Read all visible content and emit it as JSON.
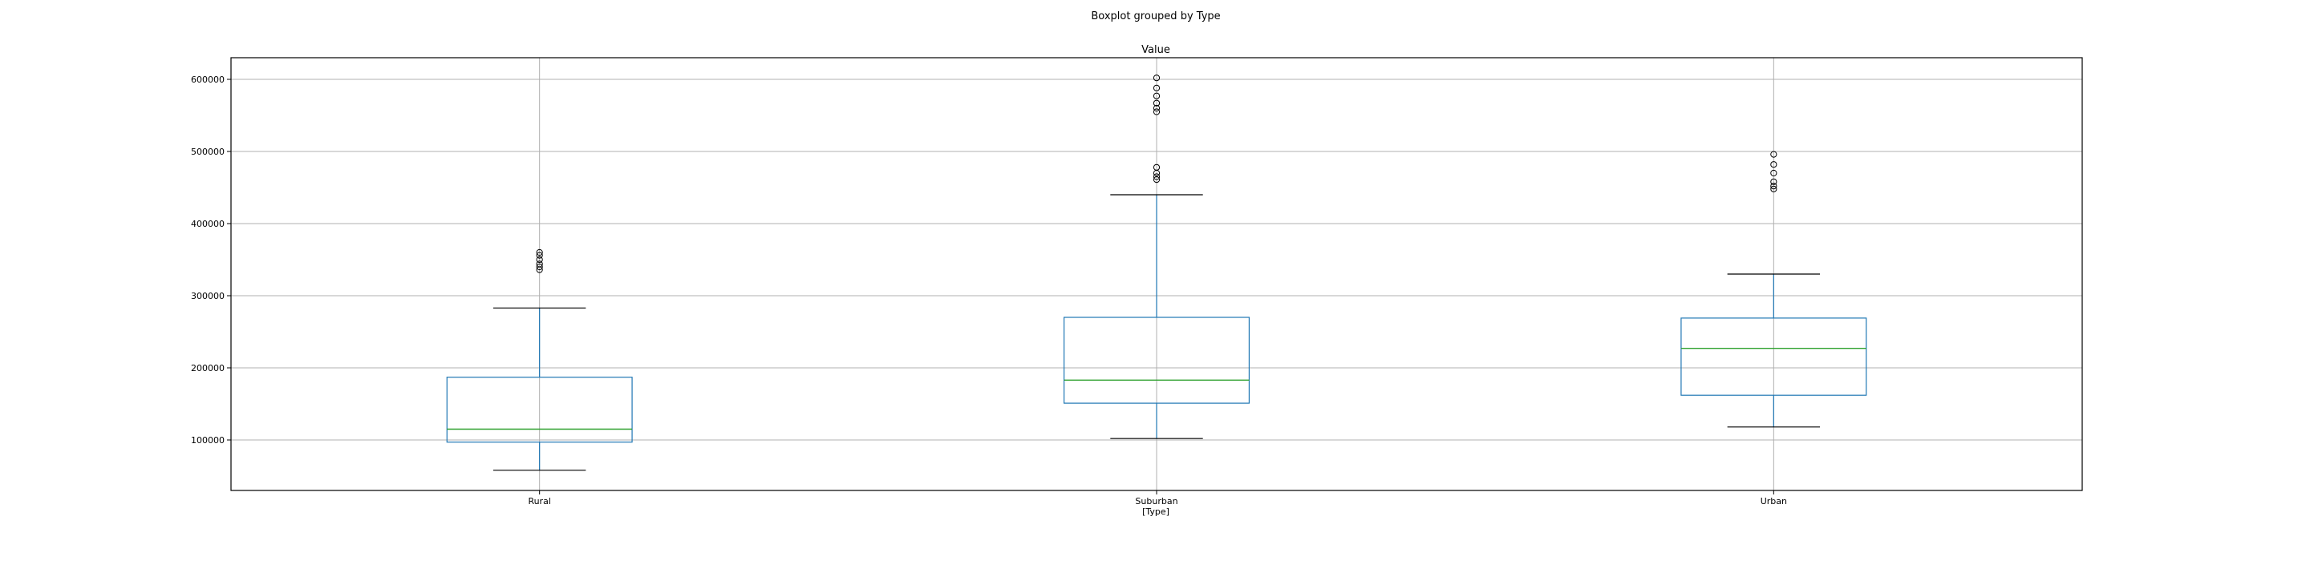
{
  "figure": {
    "suptitle": "Boxplot grouped by Type"
  },
  "chart_data": {
    "type": "box",
    "title": "Value",
    "xlabel": "[Type]",
    "ylabel": "",
    "categories": [
      "Rural",
      "Suburban",
      "Urban"
    ],
    "ylim": [
      30000,
      630000
    ],
    "yticks": [
      100000,
      200000,
      300000,
      400000,
      500000,
      600000
    ],
    "ytick_labels": [
      "100000",
      "200000",
      "300000",
      "400000",
      "500000",
      "600000"
    ],
    "grid": true,
    "colors": {
      "box": "#1f77b4",
      "median": "#2ca02c",
      "cap": "#000000",
      "flier": "#000000",
      "grid": "#b0b0b0"
    },
    "boxes": [
      {
        "category": "Rural",
        "whislo": 58000,
        "q1": 97000,
        "med": 115000,
        "q3": 187000,
        "whishi": 283000,
        "fliers": [
          336000,
          340000,
          344000,
          350000,
          356000,
          360000
        ]
      },
      {
        "category": "Suburban",
        "whislo": 102000,
        "q1": 151000,
        "med": 183000,
        "q3": 270000,
        "whishi": 440000,
        "fliers": [
          461000,
          465000,
          470000,
          478000,
          555000,
          560000,
          567000,
          577000,
          588000,
          602000
        ]
      },
      {
        "category": "Urban",
        "whislo": 118000,
        "q1": 162000,
        "med": 227000,
        "q3": 269000,
        "whishi": 330000,
        "fliers": [
          448000,
          452000,
          458000,
          470000,
          482000,
          496000
        ]
      }
    ]
  }
}
